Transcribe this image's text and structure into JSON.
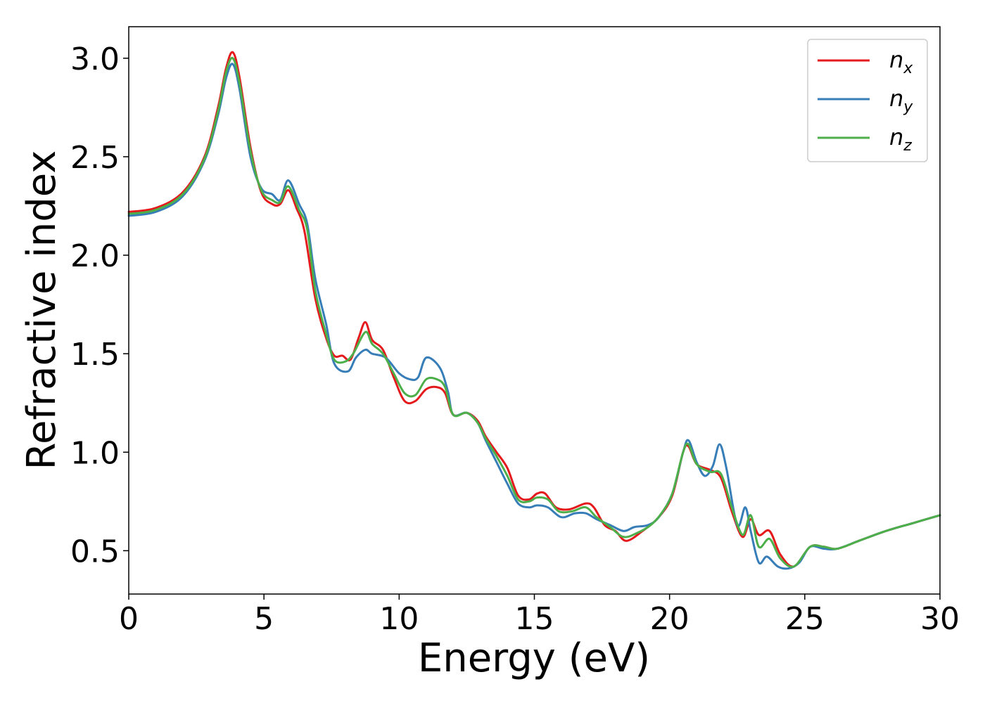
{
  "chart_data": {
    "type": "line",
    "title": "",
    "xlabel": "Energy (eV)",
    "ylabel": "Refractive index",
    "xlim": [
      0,
      30
    ],
    "ylim": [
      0.28,
      3.16
    ],
    "xticks": [
      "0",
      "5",
      "10",
      "15",
      "20",
      "25",
      "30"
    ],
    "yticks": [
      "0.5",
      "1.0",
      "1.5",
      "2.0",
      "2.5",
      "3.0"
    ],
    "grid": false,
    "legend_position": "top-right",
    "series": [
      {
        "name": "n_x",
        "label_main": "n",
        "label_sub": "x",
        "color": "#e41a1c",
        "points": [
          [
            0,
            2.22
          ],
          [
            1,
            2.24
          ],
          [
            2,
            2.32
          ],
          [
            2.8,
            2.5
          ],
          [
            3.3,
            2.75
          ],
          [
            3.6,
            2.95
          ],
          [
            3.85,
            3.03
          ],
          [
            4.1,
            2.9
          ],
          [
            4.5,
            2.55
          ],
          [
            4.9,
            2.32
          ],
          [
            5.3,
            2.26
          ],
          [
            5.6,
            2.26
          ],
          [
            5.9,
            2.33
          ],
          [
            6.2,
            2.24
          ],
          [
            6.5,
            2.12
          ],
          [
            6.9,
            1.78
          ],
          [
            7.3,
            1.58
          ],
          [
            7.6,
            1.49
          ],
          [
            7.9,
            1.49
          ],
          [
            8.2,
            1.47
          ],
          [
            8.5,
            1.58
          ],
          [
            8.75,
            1.66
          ],
          [
            9.0,
            1.57
          ],
          [
            9.4,
            1.52
          ],
          [
            9.8,
            1.38
          ],
          [
            10.2,
            1.26
          ],
          [
            10.6,
            1.26
          ],
          [
            11.0,
            1.32
          ],
          [
            11.4,
            1.33
          ],
          [
            11.7,
            1.3
          ],
          [
            12.0,
            1.19
          ],
          [
            12.5,
            1.2
          ],
          [
            12.9,
            1.16
          ],
          [
            13.2,
            1.08
          ],
          [
            13.6,
            1.0
          ],
          [
            14.0,
            0.92
          ],
          [
            14.4,
            0.78
          ],
          [
            14.8,
            0.76
          ],
          [
            15.1,
            0.79
          ],
          [
            15.4,
            0.79
          ],
          [
            15.8,
            0.72
          ],
          [
            16.3,
            0.71
          ],
          [
            16.9,
            0.74
          ],
          [
            17.2,
            0.72
          ],
          [
            17.6,
            0.63
          ],
          [
            18.0,
            0.6
          ],
          [
            18.4,
            0.55
          ],
          [
            19.0,
            0.6
          ],
          [
            19.6,
            0.67
          ],
          [
            20.1,
            0.78
          ],
          [
            20.5,
            1.0
          ],
          [
            20.7,
            1.03
          ],
          [
            21.0,
            0.94
          ],
          [
            21.5,
            0.91
          ],
          [
            21.9,
            0.87
          ],
          [
            22.3,
            0.7
          ],
          [
            22.7,
            0.57
          ],
          [
            23.0,
            0.66
          ],
          [
            23.3,
            0.58
          ],
          [
            23.7,
            0.6
          ],
          [
            24.1,
            0.48
          ],
          [
            24.6,
            0.42
          ],
          [
            25.2,
            0.52
          ],
          [
            25.7,
            0.52
          ],
          [
            26.2,
            0.51
          ],
          [
            27.0,
            0.55
          ],
          [
            28.0,
            0.6
          ],
          [
            29.0,
            0.64
          ],
          [
            30.0,
            0.68
          ]
        ]
      },
      {
        "name": "n_y",
        "label_main": "n",
        "label_sub": "y",
        "color": "#377eb8",
        "points": [
          [
            0,
            2.2
          ],
          [
            1,
            2.22
          ],
          [
            2,
            2.3
          ],
          [
            2.8,
            2.48
          ],
          [
            3.3,
            2.71
          ],
          [
            3.6,
            2.9
          ],
          [
            3.85,
            2.97
          ],
          [
            4.1,
            2.84
          ],
          [
            4.5,
            2.5
          ],
          [
            4.9,
            2.34
          ],
          [
            5.3,
            2.31
          ],
          [
            5.6,
            2.28
          ],
          [
            5.9,
            2.38
          ],
          [
            6.3,
            2.26
          ],
          [
            6.6,
            2.16
          ],
          [
            6.9,
            1.88
          ],
          [
            7.3,
            1.65
          ],
          [
            7.6,
            1.45
          ],
          [
            8.1,
            1.41
          ],
          [
            8.4,
            1.48
          ],
          [
            8.75,
            1.52
          ],
          [
            9.0,
            1.5
          ],
          [
            9.5,
            1.48
          ],
          [
            10.0,
            1.4
          ],
          [
            10.4,
            1.37
          ],
          [
            10.7,
            1.38
          ],
          [
            11.0,
            1.48
          ],
          [
            11.5,
            1.43
          ],
          [
            11.8,
            1.31
          ],
          [
            12.0,
            1.19
          ],
          [
            12.5,
            1.2
          ],
          [
            12.9,
            1.15
          ],
          [
            13.2,
            1.06
          ],
          [
            13.6,
            0.95
          ],
          [
            14.0,
            0.84
          ],
          [
            14.4,
            0.74
          ],
          [
            14.8,
            0.72
          ],
          [
            15.1,
            0.73
          ],
          [
            15.5,
            0.72
          ],
          [
            16.0,
            0.67
          ],
          [
            16.5,
            0.69
          ],
          [
            16.9,
            0.69
          ],
          [
            17.3,
            0.66
          ],
          [
            17.8,
            0.63
          ],
          [
            18.3,
            0.6
          ],
          [
            18.7,
            0.62
          ],
          [
            19.2,
            0.63
          ],
          [
            19.6,
            0.67
          ],
          [
            20.1,
            0.79
          ],
          [
            20.5,
            1.0
          ],
          [
            20.7,
            1.06
          ],
          [
            21.0,
            0.95
          ],
          [
            21.3,
            0.88
          ],
          [
            21.6,
            0.93
          ],
          [
            21.85,
            1.04
          ],
          [
            22.1,
            0.92
          ],
          [
            22.5,
            0.63
          ],
          [
            22.8,
            0.72
          ],
          [
            23.0,
            0.6
          ],
          [
            23.3,
            0.44
          ],
          [
            23.6,
            0.47
          ],
          [
            24.0,
            0.42
          ],
          [
            24.4,
            0.41
          ],
          [
            24.8,
            0.44
          ],
          [
            25.2,
            0.52
          ],
          [
            25.7,
            0.51
          ],
          [
            26.2,
            0.51
          ],
          [
            27.0,
            0.55
          ],
          [
            28.0,
            0.6
          ],
          [
            29.0,
            0.64
          ],
          [
            30.0,
            0.68
          ]
        ]
      },
      {
        "name": "n_z",
        "label_main": "n",
        "label_sub": "z",
        "color": "#4daf4a",
        "points": [
          [
            0,
            2.21
          ],
          [
            1,
            2.23
          ],
          [
            2,
            2.31
          ],
          [
            2.8,
            2.49
          ],
          [
            3.3,
            2.73
          ],
          [
            3.6,
            2.93
          ],
          [
            3.85,
            3.0
          ],
          [
            4.1,
            2.87
          ],
          [
            4.5,
            2.53
          ],
          [
            4.9,
            2.33
          ],
          [
            5.3,
            2.28
          ],
          [
            5.6,
            2.27
          ],
          [
            5.9,
            2.35
          ],
          [
            6.3,
            2.23
          ],
          [
            6.6,
            2.13
          ],
          [
            6.9,
            1.82
          ],
          [
            7.3,
            1.6
          ],
          [
            7.6,
            1.47
          ],
          [
            8.0,
            1.46
          ],
          [
            8.3,
            1.5
          ],
          [
            8.75,
            1.61
          ],
          [
            9.0,
            1.55
          ],
          [
            9.4,
            1.5
          ],
          [
            9.8,
            1.4
          ],
          [
            10.2,
            1.3
          ],
          [
            10.6,
            1.29
          ],
          [
            11.0,
            1.37
          ],
          [
            11.4,
            1.37
          ],
          [
            11.7,
            1.33
          ],
          [
            12.0,
            1.19
          ],
          [
            12.5,
            1.2
          ],
          [
            12.9,
            1.15
          ],
          [
            13.2,
            1.07
          ],
          [
            13.6,
            0.98
          ],
          [
            14.0,
            0.88
          ],
          [
            14.4,
            0.76
          ],
          [
            14.8,
            0.75
          ],
          [
            15.1,
            0.77
          ],
          [
            15.5,
            0.76
          ],
          [
            15.9,
            0.7
          ],
          [
            16.4,
            0.7
          ],
          [
            16.9,
            0.72
          ],
          [
            17.3,
            0.67
          ],
          [
            17.8,
            0.62
          ],
          [
            18.3,
            0.57
          ],
          [
            18.8,
            0.59
          ],
          [
            19.3,
            0.63
          ],
          [
            19.7,
            0.69
          ],
          [
            20.1,
            0.79
          ],
          [
            20.5,
            1.0
          ],
          [
            20.7,
            1.04
          ],
          [
            21.0,
            0.94
          ],
          [
            21.5,
            0.9
          ],
          [
            21.9,
            0.89
          ],
          [
            22.3,
            0.72
          ],
          [
            22.7,
            0.58
          ],
          [
            23.0,
            0.68
          ],
          [
            23.3,
            0.52
          ],
          [
            23.7,
            0.56
          ],
          [
            24.1,
            0.46
          ],
          [
            24.6,
            0.42
          ],
          [
            25.2,
            0.52
          ],
          [
            25.7,
            0.52
          ],
          [
            26.2,
            0.51
          ],
          [
            27.0,
            0.55
          ],
          [
            28.0,
            0.6
          ],
          [
            29.0,
            0.64
          ],
          [
            30.0,
            0.68
          ]
        ]
      }
    ]
  }
}
